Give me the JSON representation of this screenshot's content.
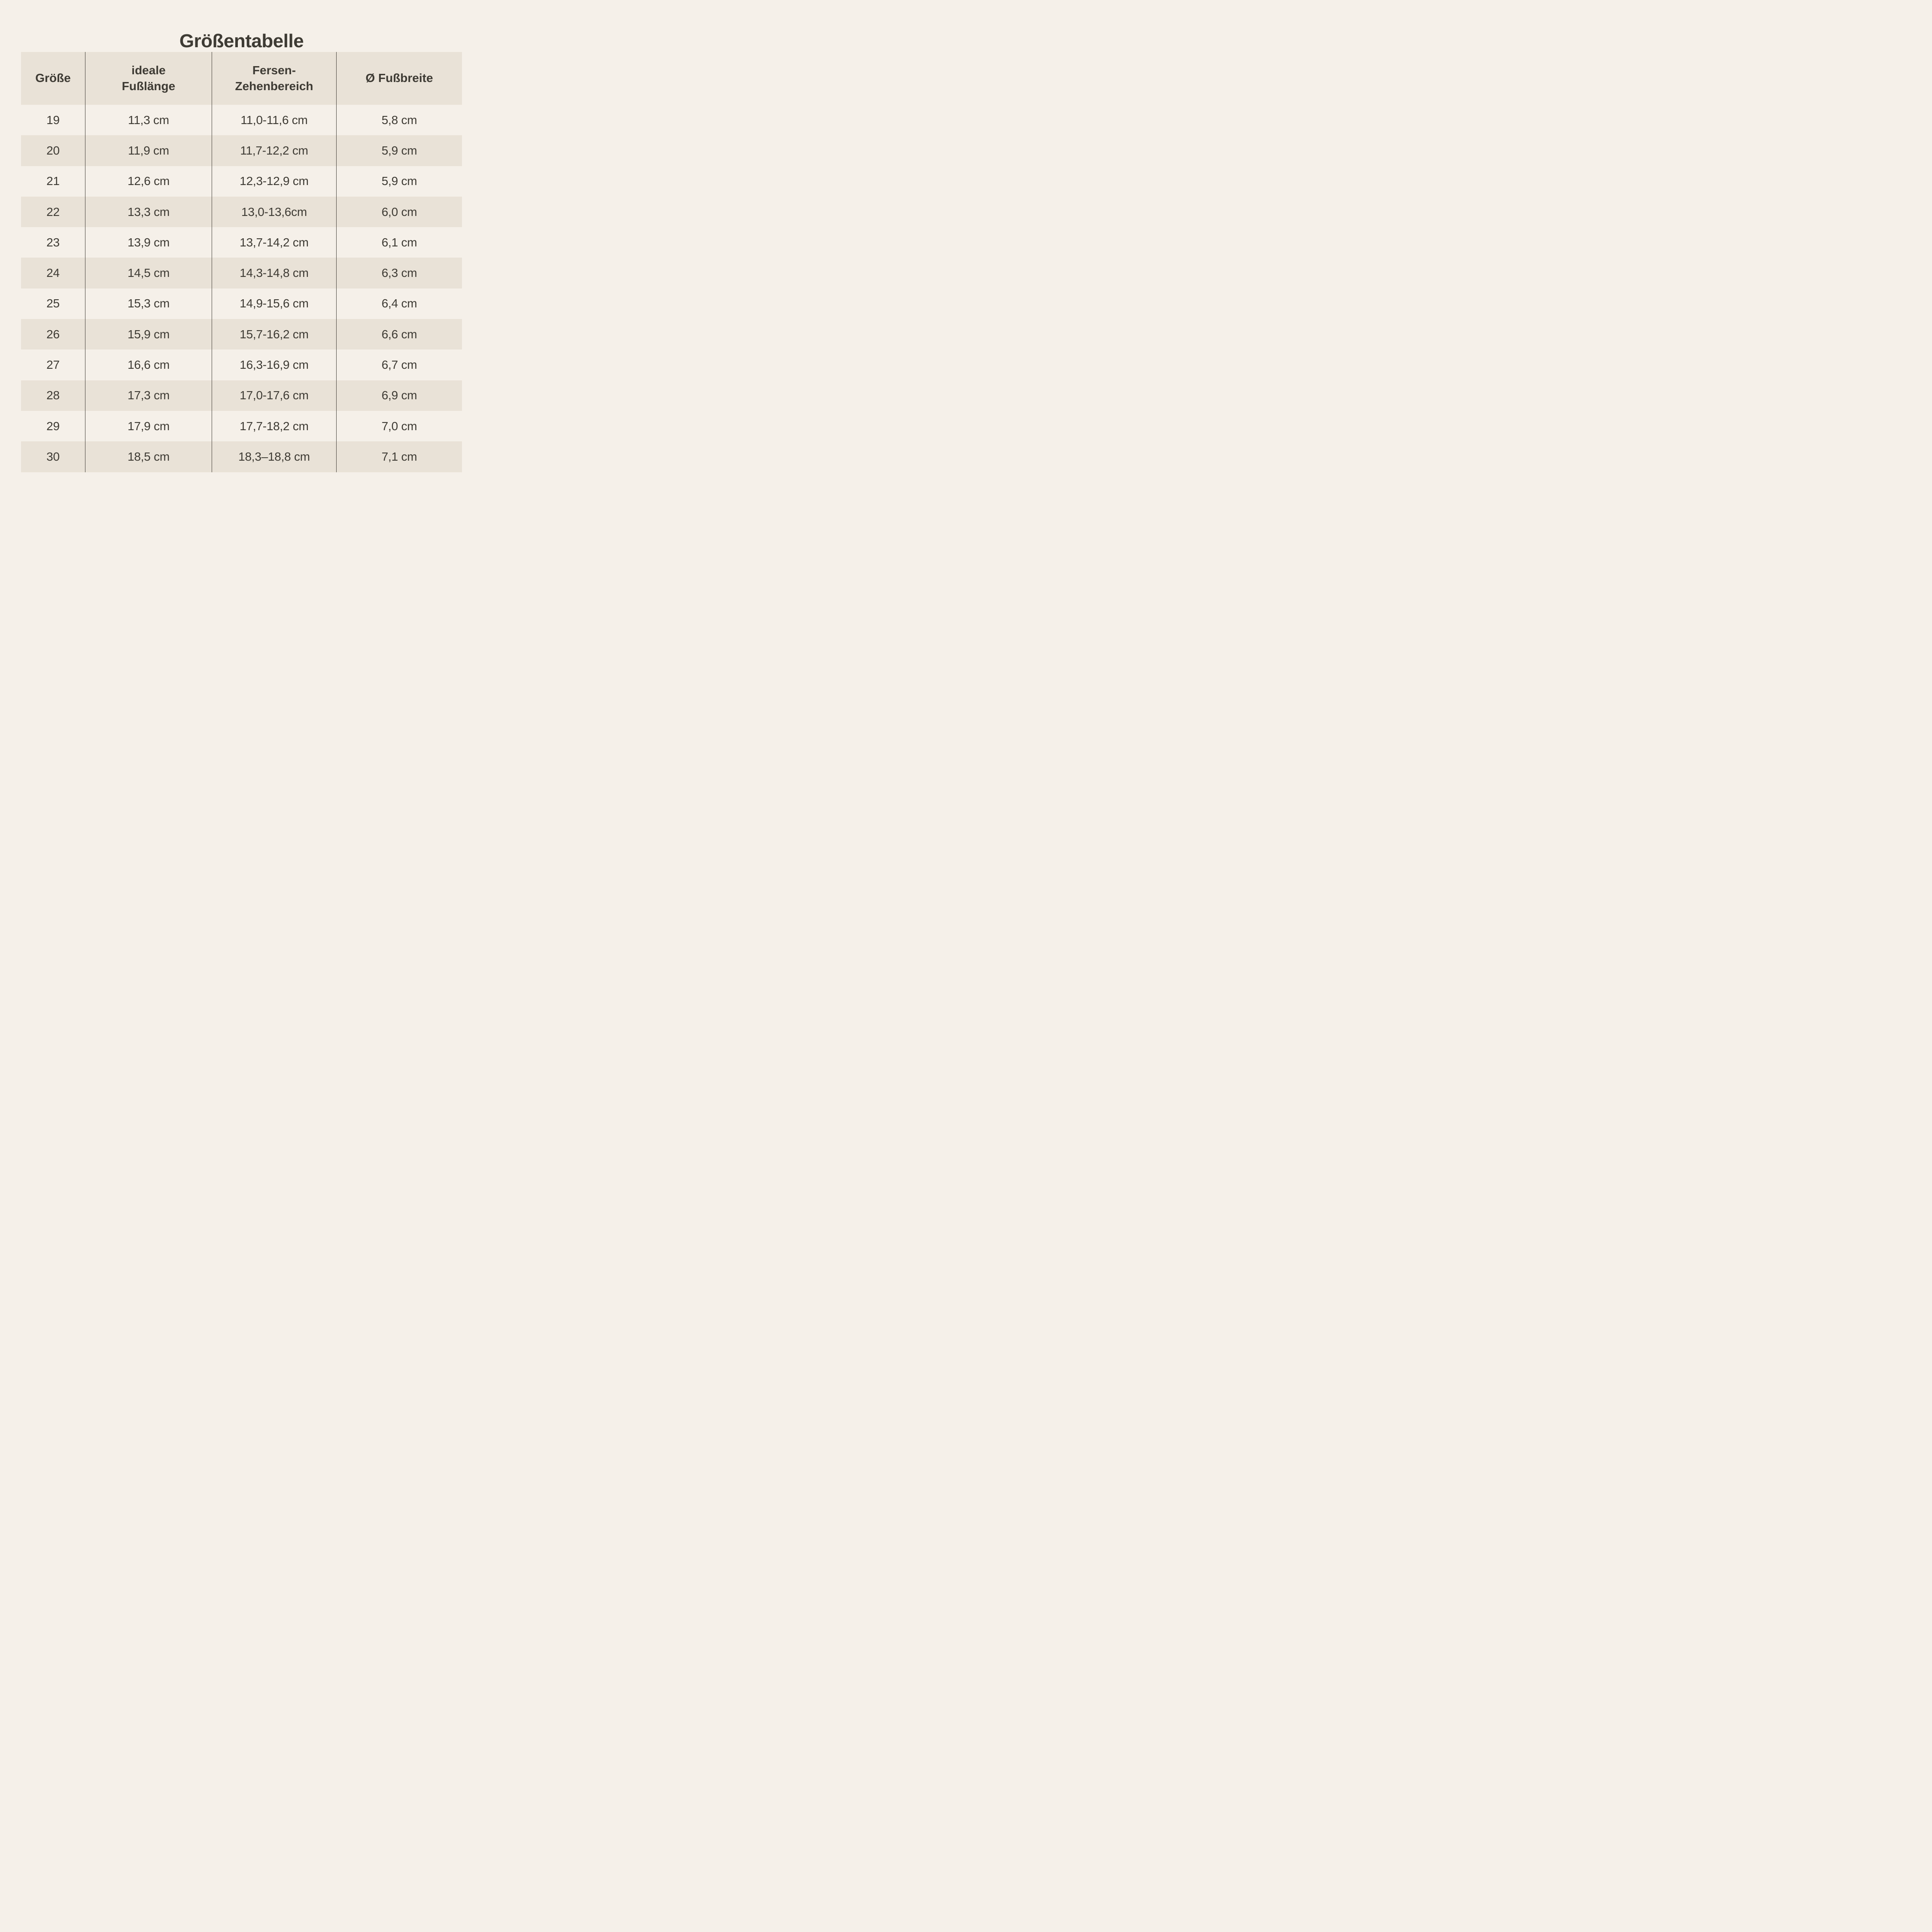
{
  "title": "Größentabelle",
  "colors": {
    "background": "#f5f0e9",
    "stripe": "#e9e2d7",
    "text": "#3e3b34",
    "divider": "#45423b"
  },
  "chart_data": {
    "type": "table",
    "title": "Größentabelle",
    "column_names": [
      "Größe",
      "ideale Fußlänge",
      "Fersen-Zehenbereich",
      "Ø Fußbreite"
    ],
    "header": {
      "col1": {
        "line1": "Größe"
      },
      "col2": {
        "line1": "ideale",
        "line2": "Fußlänge"
      },
      "col3": {
        "line1": "Fersen-",
        "line2": "Zehenbereich"
      },
      "col4": {
        "line1": "Ø Fußbreite"
      }
    },
    "rows": [
      {
        "size": "19",
        "ideal_foot_length": "11,3 cm",
        "heel_toe_range": "11,0-11,6 cm",
        "avg_foot_width": "5,8 cm"
      },
      {
        "size": "20",
        "ideal_foot_length": "11,9 cm",
        "heel_toe_range": "11,7-12,2 cm",
        "avg_foot_width": "5,9 cm"
      },
      {
        "size": "21",
        "ideal_foot_length": "12,6 cm",
        "heel_toe_range": "12,3-12,9 cm",
        "avg_foot_width": "5,9 cm"
      },
      {
        "size": "22",
        "ideal_foot_length": "13,3 cm",
        "heel_toe_range": "13,0-13,6cm",
        "avg_foot_width": "6,0 cm"
      },
      {
        "size": "23",
        "ideal_foot_length": "13,9 cm",
        "heel_toe_range": "13,7-14,2 cm",
        "avg_foot_width": "6,1 cm"
      },
      {
        "size": "24",
        "ideal_foot_length": "14,5 cm",
        "heel_toe_range": "14,3-14,8 cm",
        "avg_foot_width": "6,3 cm"
      },
      {
        "size": "25",
        "ideal_foot_length": "15,3 cm",
        "heel_toe_range": "14,9-15,6 cm",
        "avg_foot_width": "6,4 cm"
      },
      {
        "size": "26",
        "ideal_foot_length": "15,9 cm",
        "heel_toe_range": "15,7-16,2 cm",
        "avg_foot_width": "6,6 cm"
      },
      {
        "size": "27",
        "ideal_foot_length": "16,6 cm",
        "heel_toe_range": "16,3-16,9 cm",
        "avg_foot_width": "6,7 cm"
      },
      {
        "size": "28",
        "ideal_foot_length": "17,3 cm",
        "heel_toe_range": "17,0-17,6 cm",
        "avg_foot_width": "6,9 cm"
      },
      {
        "size": "29",
        "ideal_foot_length": "17,9 cm",
        "heel_toe_range": "17,7-18,2 cm",
        "avg_foot_width": "7,0 cm"
      },
      {
        "size": "30",
        "ideal_foot_length": "18,5 cm",
        "heel_toe_range": "18,3–18,8 cm",
        "avg_foot_width": "7,1 cm"
      }
    ]
  }
}
